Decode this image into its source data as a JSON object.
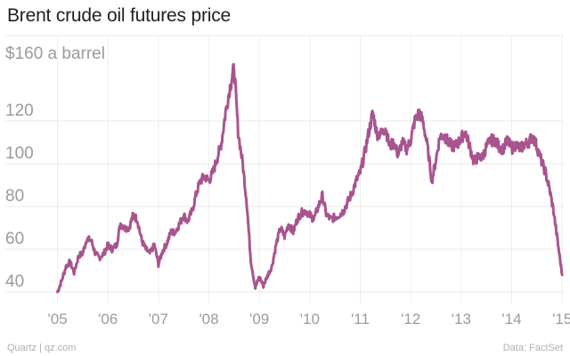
{
  "chart_data": {
    "type": "line",
    "title": "Brent crude oil futures price",
    "ylabel": "$160 a barrel",
    "xlabel": "",
    "y_ticks": [
      40,
      60,
      80,
      100,
      120
    ],
    "y_top_label": "$160 a barrel",
    "ylim": [
      35,
      160
    ],
    "xlim": [
      2004.92,
      2015.05
    ],
    "x_ticks": [
      {
        "value": 2005,
        "label": "'05"
      },
      {
        "value": 2006,
        "label": "'06"
      },
      {
        "value": 2007,
        "label": "'07"
      },
      {
        "value": 2008,
        "label": "'08"
      },
      {
        "value": 2009,
        "label": "'09"
      },
      {
        "value": 2010,
        "label": "'10"
      },
      {
        "value": 2011,
        "label": "'11"
      },
      {
        "value": 2012,
        "label": "'12"
      },
      {
        "value": 2013,
        "label": "'13"
      },
      {
        "value": 2014,
        "label": "'14"
      },
      {
        "value": 2015,
        "label": "'15"
      }
    ],
    "grid": true,
    "series": [
      {
        "name": "Brent crude oil futures",
        "color": "#a8548e",
        "x": [
          2005.0,
          2005.08,
          2005.17,
          2005.25,
          2005.33,
          2005.42,
          2005.5,
          2005.58,
          2005.67,
          2005.75,
          2005.83,
          2005.92,
          2006.0,
          2006.08,
          2006.17,
          2006.25,
          2006.33,
          2006.42,
          2006.5,
          2006.58,
          2006.67,
          2006.75,
          2006.83,
          2006.92,
          2007.0,
          2007.08,
          2007.17,
          2007.25,
          2007.33,
          2007.42,
          2007.5,
          2007.58,
          2007.67,
          2007.75,
          2007.83,
          2007.92,
          2008.0,
          2008.08,
          2008.17,
          2008.25,
          2008.33,
          2008.42,
          2008.5,
          2008.58,
          2008.67,
          2008.75,
          2008.83,
          2008.92,
          2009.0,
          2009.08,
          2009.17,
          2009.25,
          2009.33,
          2009.42,
          2009.5,
          2009.58,
          2009.67,
          2009.75,
          2009.83,
          2009.92,
          2010.0,
          2010.08,
          2010.17,
          2010.25,
          2010.33,
          2010.42,
          2010.5,
          2010.58,
          2010.67,
          2010.75,
          2010.83,
          2010.92,
          2011.0,
          2011.08,
          2011.17,
          2011.25,
          2011.33,
          2011.42,
          2011.5,
          2011.58,
          2011.67,
          2011.75,
          2011.83,
          2011.92,
          2012.0,
          2012.08,
          2012.17,
          2012.25,
          2012.33,
          2012.42,
          2012.5,
          2012.58,
          2012.67,
          2012.75,
          2012.83,
          2012.92,
          2013.0,
          2013.08,
          2013.17,
          2013.25,
          2013.33,
          2013.42,
          2013.5,
          2013.58,
          2013.67,
          2013.75,
          2013.83,
          2013.92,
          2014.0,
          2014.08,
          2014.17,
          2014.25,
          2014.33,
          2014.42,
          2014.5,
          2014.58,
          2014.67,
          2014.75,
          2014.83,
          2014.92,
          2015.0
        ],
        "values": [
          40,
          45,
          52,
          54,
          49,
          57,
          58,
          65,
          64,
          58,
          56,
          58,
          62,
          60,
          62,
          72,
          70,
          70,
          76,
          74,
          64,
          60,
          58,
          62,
          53,
          59,
          63,
          68,
          68,
          72,
          76,
          73,
          78,
          86,
          92,
          94,
          92,
          96,
          103,
          110,
          124,
          136,
          145,
          115,
          100,
          82,
          55,
          42,
          47,
          43,
          48,
          52,
          62,
          70,
          66,
          72,
          68,
          74,
          77,
          78,
          76,
          74,
          80,
          85,
          76,
          74,
          75,
          76,
          78,
          82,
          86,
          92,
          96,
          104,
          115,
          124,
          114,
          114,
          117,
          108,
          110,
          104,
          110,
          107,
          111,
          120,
          124,
          119,
          108,
          92,
          102,
          113,
          113,
          110,
          108,
          109,
          112,
          115,
          108,
          101,
          103,
          103,
          108,
          111,
          111,
          108,
          107,
          111,
          107,
          109,
          107,
          109,
          110,
          113,
          108,
          102,
          96,
          88,
          78,
          62,
          48
        ]
      }
    ]
  },
  "footer": {
    "source": "Quartz | qz.com",
    "credit": "Data: FactSet"
  }
}
